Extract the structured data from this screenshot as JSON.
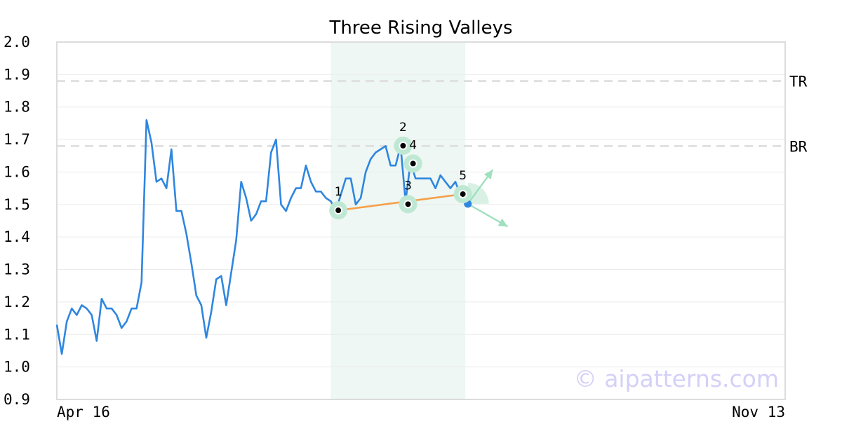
{
  "chart_data": {
    "type": "line",
    "title": "Three Rising Valleys",
    "xlabel": "",
    "ylabel": "",
    "ylim": [
      0.9,
      2.0
    ],
    "yticks": [
      "2.0",
      "1.9",
      "1.8",
      "1.7",
      "1.6",
      "1.5",
      "1.4",
      "1.3",
      "1.2",
      "1.1",
      "1.0",
      "0.9"
    ],
    "xtick_labels": [
      "Apr 16",
      "Nov 13"
    ],
    "grid": "horizontal",
    "series": [
      {
        "color": "#2f86e0",
        "values": [
          1.13,
          1.04,
          1.14,
          1.18,
          1.16,
          1.19,
          1.18,
          1.16,
          1.08,
          1.21,
          1.18,
          1.18,
          1.16,
          1.12,
          1.14,
          1.18,
          1.18,
          1.26,
          1.76,
          1.69,
          1.57,
          1.58,
          1.55,
          1.67,
          1.48,
          1.48,
          1.41,
          1.32,
          1.22,
          1.19,
          1.09,
          1.17,
          1.27,
          1.28,
          1.19,
          1.29,
          1.39,
          1.57,
          1.52,
          1.45,
          1.47,
          1.51,
          1.51,
          1.66,
          1.7,
          1.5,
          1.48,
          1.52,
          1.55,
          1.55,
          1.62,
          1.57,
          1.54,
          1.54,
          1.52,
          1.51,
          1.48,
          1.53,
          1.58,
          1.58,
          1.5,
          1.52,
          1.6,
          1.64,
          1.66,
          1.67,
          1.68,
          1.62,
          1.62,
          1.68,
          1.51,
          1.63,
          1.58,
          1.58,
          1.58,
          1.58,
          1.55,
          1.59,
          1.57,
          1.55,
          1.57,
          1.53
        ]
      }
    ],
    "reference_lines": [
      {
        "label": "TR",
        "value": 1.88
      },
      {
        "label": "BR",
        "value": 1.68
      }
    ],
    "highlight_range": {
      "from_index": 55,
      "to_index": 82
    },
    "pattern_points": [
      {
        "label": "1",
        "index": 56.5,
        "value": 1.482
      },
      {
        "label": "2",
        "index": 69.5,
        "value": 1.681
      },
      {
        "label": "3",
        "index": 70.5,
        "value": 1.501
      },
      {
        "label": "4",
        "index": 71.5,
        "value": 1.626
      },
      {
        "label": "5",
        "index": 81.5,
        "value": 1.532
      }
    ],
    "trend_line": {
      "from_point": 0,
      "to_point": 4
    },
    "projection": {
      "index": 82.5,
      "value": 1.502,
      "up_to": {
        "index": 87.5,
        "value": 1.607
      },
      "down_to": {
        "index": 90.5,
        "value": 1.432
      }
    },
    "colors": {
      "line": "#2f86e0",
      "trend": "#f5a04a",
      "highlight": "#eef7f3",
      "marker_halo": "#bfe8d4",
      "arrow": "#9ee0c0",
      "projection": "#2f86e0"
    }
  },
  "watermark": "© aipatterns.com"
}
